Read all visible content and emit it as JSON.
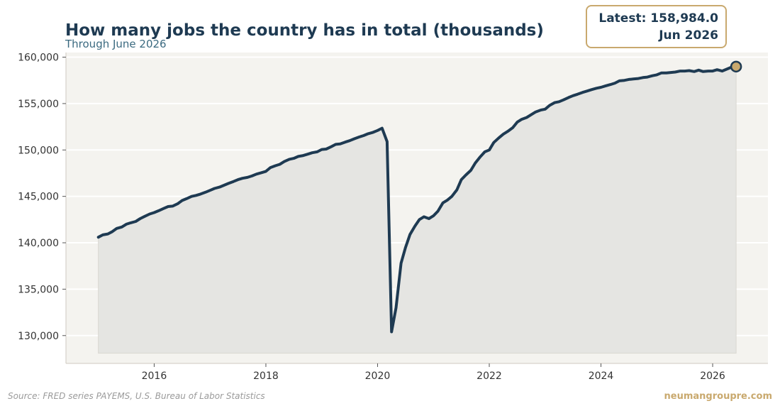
{
  "header": {
    "title": "How many jobs the country has in total (thousands)",
    "subtitle": "Through June 2026"
  },
  "latest": {
    "value_label": "Latest: 158,984.0",
    "date_label": "Jun 2026"
  },
  "footer": {
    "source": "Source: FRED series PAYEMS, U.S. Bureau of Labor Statistics",
    "brand": "neumangroupre.com"
  },
  "colors": {
    "line": "#1e3a52",
    "area_fill": "#e5e5e2",
    "plot_background": "#f4f3ef",
    "accent": "#c9a96e",
    "grid": "#ffffff"
  },
  "chart_data": {
    "type": "line",
    "title": "How many jobs the country has in total (thousands)",
    "subtitle": "Through June 2026",
    "xlabel": "",
    "ylabel": "",
    "xlim": [
      2014.42,
      2026.99
    ],
    "ylim": [
      127000,
      160500
    ],
    "y_ticks": [
      130000,
      135000,
      140000,
      145000,
      150000,
      155000,
      160000
    ],
    "y_tick_labels": [
      "130,000",
      "135,000",
      "140,000",
      "145,000",
      "150,000",
      "155,000",
      "160,000"
    ],
    "x_ticks": [
      2016,
      2018,
      2020,
      2022,
      2024,
      2026
    ],
    "x_tick_labels": [
      "2016",
      "2018",
      "2020",
      "2022",
      "2024",
      "2026"
    ],
    "area_baseline": 128100,
    "grid": "horizontal",
    "legend": "none",
    "series": [
      {
        "x": [
          2015.0,
          2015.08,
          2015.17,
          2015.25,
          2015.33,
          2015.42,
          2015.5,
          2015.58,
          2015.67,
          2015.75,
          2015.83,
          2015.92,
          2016.0,
          2016.08,
          2016.17,
          2016.25,
          2016.33,
          2016.42,
          2016.5,
          2016.58,
          2016.67,
          2016.75,
          2016.83,
          2016.92,
          2017.0,
          2017.08,
          2017.17,
          2017.25,
          2017.33,
          2017.42,
          2017.5,
          2017.58,
          2017.67,
          2017.75,
          2017.83,
          2017.92,
          2018.0,
          2018.08,
          2018.17,
          2018.25,
          2018.33,
          2018.42,
          2018.5,
          2018.58,
          2018.67,
          2018.75,
          2018.83,
          2018.92,
          2019.0,
          2019.08,
          2019.17,
          2019.25,
          2019.33,
          2019.42,
          2019.5,
          2019.58,
          2019.67,
          2019.75,
          2019.83,
          2019.92,
          2020.0,
          2020.08,
          2020.17,
          2020.25,
          2020.33,
          2020.42,
          2020.5,
          2020.58,
          2020.67,
          2020.75,
          2020.83,
          2020.92,
          2021.0,
          2021.08,
          2021.17,
          2021.25,
          2021.33,
          2021.42,
          2021.5,
          2021.58,
          2021.67,
          2021.75,
          2021.83,
          2021.92,
          2022.0,
          2022.08,
          2022.17,
          2022.25,
          2022.33,
          2022.42,
          2022.5,
          2022.58,
          2022.67,
          2022.75,
          2022.83,
          2022.92,
          2023.0,
          2023.08,
          2023.17,
          2023.25,
          2023.33,
          2023.42,
          2023.5,
          2023.58,
          2023.67,
          2023.75,
          2023.83,
          2023.92,
          2024.0,
          2024.08,
          2024.17,
          2024.25,
          2024.33,
          2024.42,
          2024.5,
          2024.58,
          2024.67,
          2024.75,
          2024.83,
          2024.92,
          2025.0,
          2025.08,
          2025.17,
          2025.25,
          2025.33,
          2025.42,
          2025.5,
          2025.58,
          2025.67,
          2025.75,
          2025.83,
          2025.92,
          2026.0,
          2026.08,
          2026.17,
          2026.25,
          2026.33,
          2026.42
        ],
        "y": [
          140600,
          140850,
          140950,
          141200,
          141550,
          141700,
          142000,
          142150,
          142300,
          142600,
          142850,
          143100,
          143250,
          143450,
          143700,
          143900,
          143950,
          144200,
          144550,
          144750,
          145000,
          145100,
          145250,
          145450,
          145650,
          145850,
          146000,
          146200,
          146400,
          146600,
          146800,
          146950,
          147050,
          147200,
          147400,
          147550,
          147700,
          148100,
          148300,
          148450,
          148750,
          149000,
          149100,
          149300,
          149400,
          149550,
          149700,
          149800,
          150050,
          150100,
          150350,
          150600,
          150650,
          150850,
          151000,
          151200,
          151400,
          151550,
          151750,
          151900,
          152100,
          152350,
          150900,
          130400,
          133000,
          137800,
          139500,
          140900,
          141800,
          142500,
          142800,
          142600,
          142900,
          143400,
          144300,
          144600,
          145000,
          145700,
          146800,
          147300,
          147800,
          148600,
          149200,
          149800,
          150000,
          150800,
          151300,
          151700,
          152000,
          152400,
          153000,
          153300,
          153500,
          153800,
          154100,
          154300,
          154400,
          154800,
          155100,
          155200,
          155400,
          155650,
          155850,
          156000,
          156200,
          156350,
          156500,
          156650,
          156750,
          156900,
          157050,
          157200,
          157450,
          157500,
          157600,
          157650,
          157700,
          157800,
          157850,
          158000,
          158100,
          158300,
          158300,
          158350,
          158400,
          158500,
          158500,
          158550,
          158450,
          158600,
          158450,
          158500,
          158500,
          158650,
          158500,
          158700,
          158900,
          158984
        ]
      }
    ],
    "latest_point": {
      "x": 2026.42,
      "y": 158984
    }
  }
}
